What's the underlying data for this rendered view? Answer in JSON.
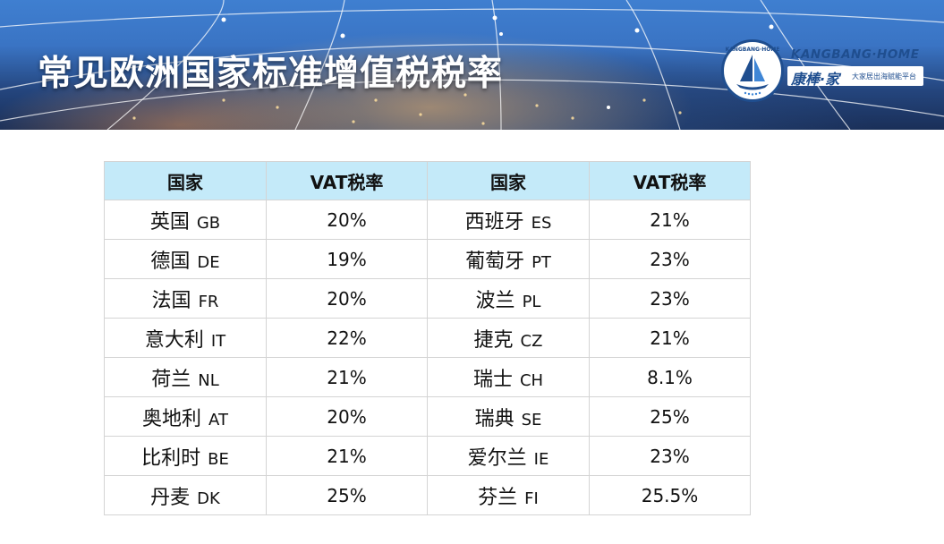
{
  "banner": {
    "title": "常见欧洲国家标准增值税税率"
  },
  "logo": {
    "circle_text": "KANGBANG·HOME",
    "name_en": "KANGBANG·HOME",
    "name_cn": "康棒·家",
    "slogan": "大家居出海赋能平台"
  },
  "table": {
    "headers": [
      "国家",
      "VAT税率",
      "国家",
      "VAT税率"
    ],
    "rows": [
      {
        "left_country": "英国",
        "left_code": "GB",
        "left_rate": "20%",
        "right_country": "西班牙",
        "right_code": "ES",
        "right_rate": "21%"
      },
      {
        "left_country": "德国",
        "left_code": "DE",
        "left_rate": "19%",
        "right_country": "葡萄牙",
        "right_code": "PT",
        "right_rate": "23%"
      },
      {
        "left_country": "法国",
        "left_code": "FR",
        "left_rate": "20%",
        "right_country": "波兰",
        "right_code": "PL",
        "right_rate": "23%"
      },
      {
        "left_country": "意大利",
        "left_code": "IT",
        "left_rate": "22%",
        "right_country": "捷克",
        "right_code": "CZ",
        "right_rate": "21%"
      },
      {
        "left_country": "荷兰",
        "left_code": "NL",
        "left_rate": "21%",
        "right_country": "瑞士",
        "right_code": "CH",
        "right_rate": "8.1%"
      },
      {
        "left_country": "奥地利",
        "left_code": "AT",
        "left_rate": "20%",
        "right_country": "瑞典",
        "right_code": "SE",
        "right_rate": "25%"
      },
      {
        "left_country": "比利时",
        "left_code": "BE",
        "left_rate": "21%",
        "right_country": "爱尔兰",
        "right_code": "IE",
        "right_rate": "23%"
      },
      {
        "left_country": "丹麦",
        "left_code": "DK",
        "left_rate": "25%",
        "right_country": "芬兰",
        "right_code": "FI",
        "right_rate": "25.5%"
      }
    ]
  }
}
